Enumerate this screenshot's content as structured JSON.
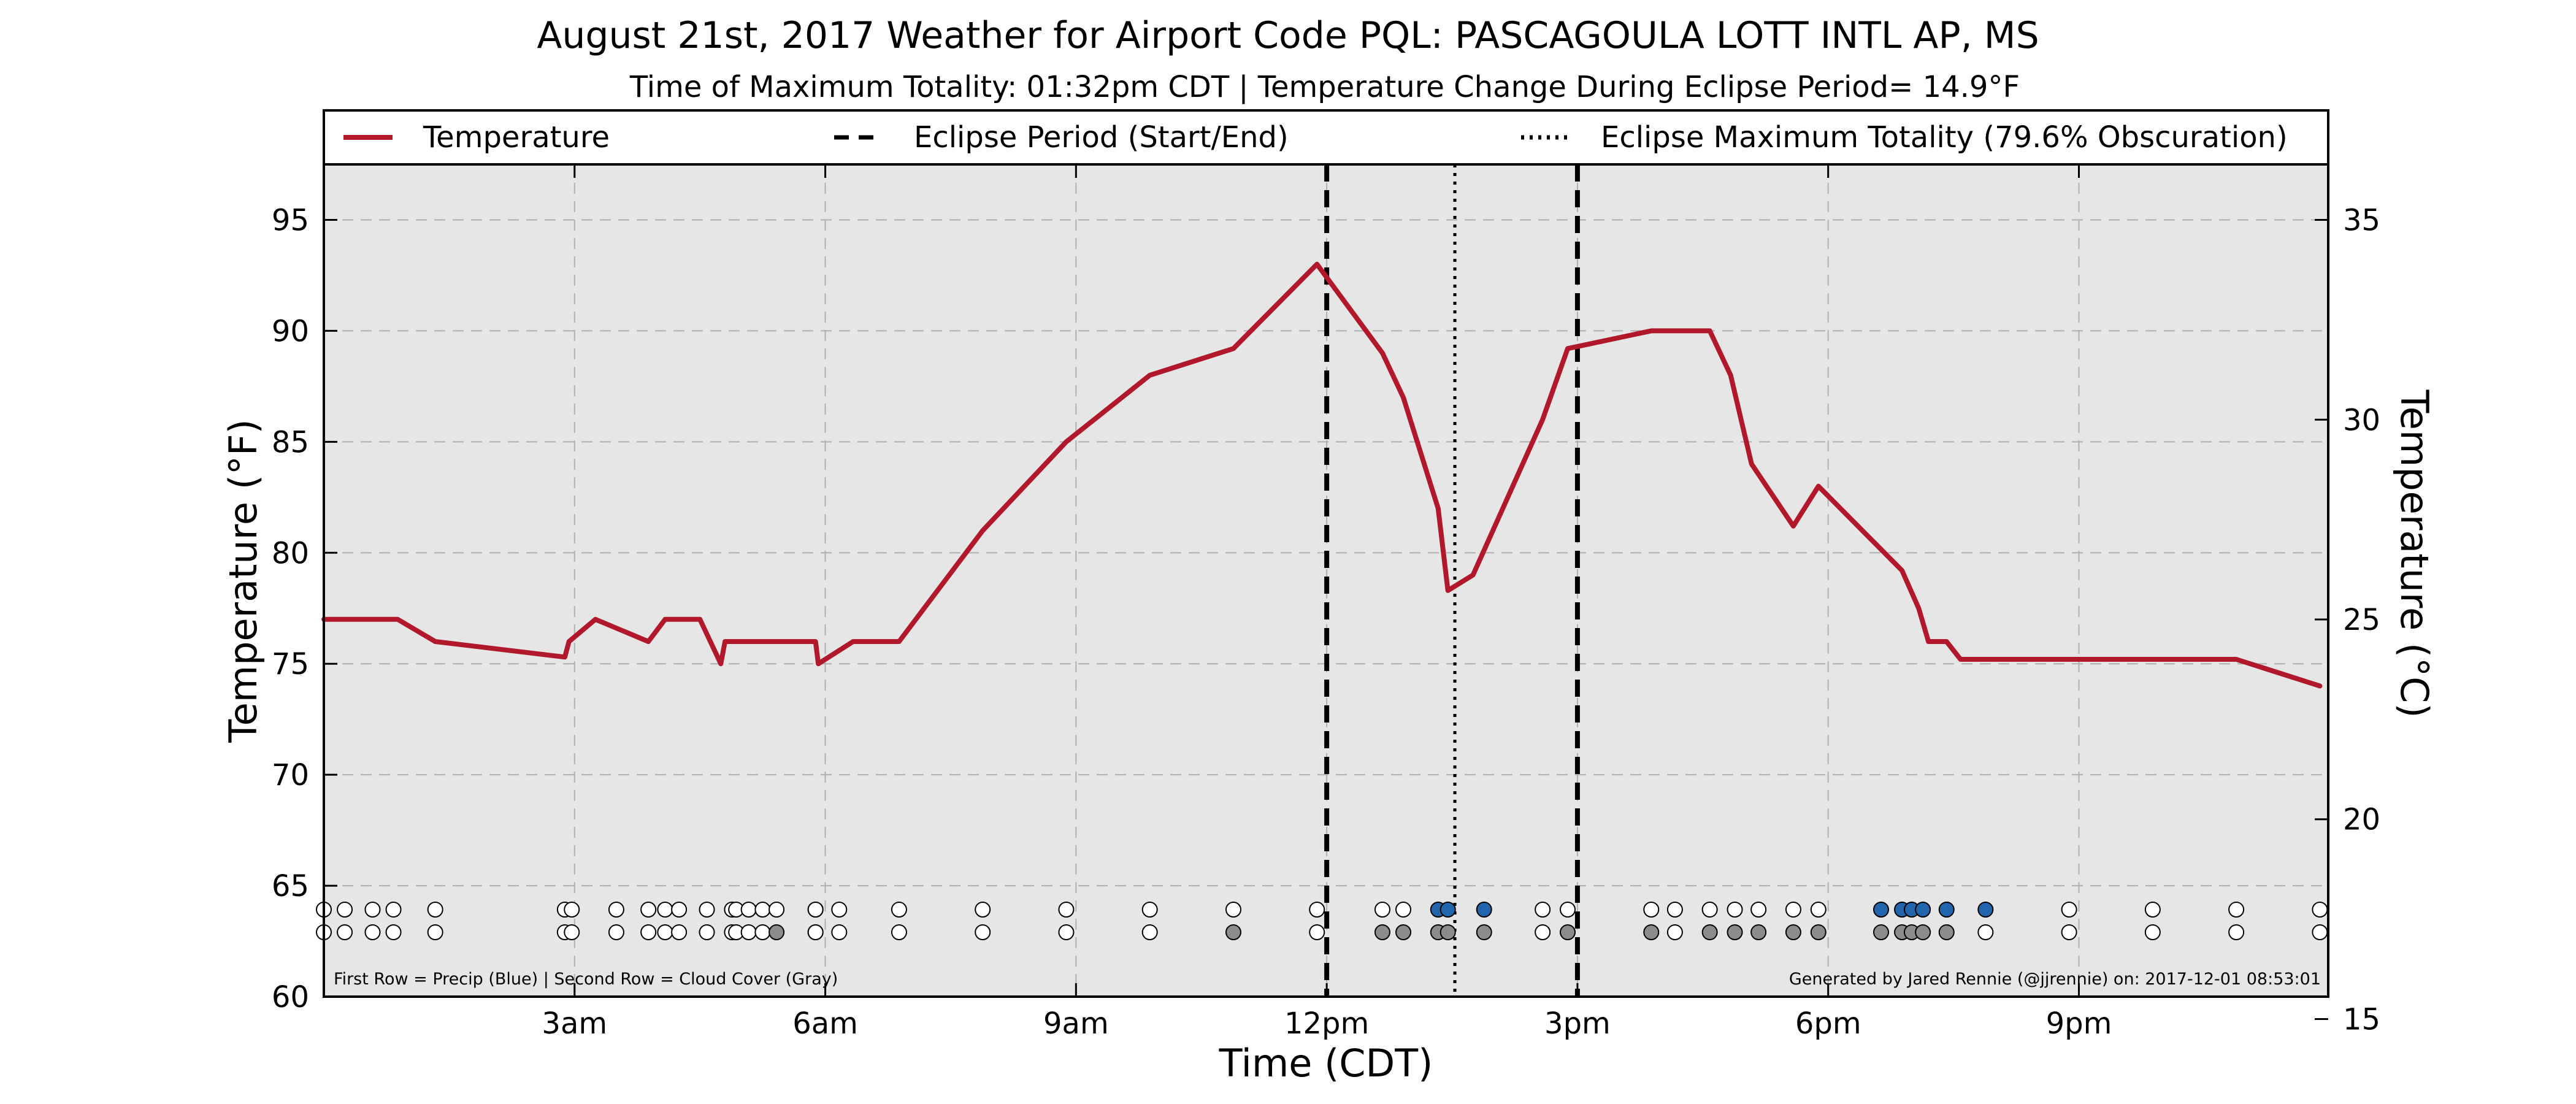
{
  "chart_data": {
    "type": "line",
    "title": "August 21st, 2017 Weather for Airport Code PQL: PASCAGOULA LOTT INTL AP, MS",
    "subtitle": "Time of Maximum Totality: 01:32pm CDT | Temperature Change During Eclipse Period= 14.9°F",
    "xlabel": "Time (CDT)",
    "ylabel": "Temperature (°F)",
    "ylabel_right": "Temperature (°C)",
    "xlim": [
      "00:00",
      "23:59"
    ],
    "ylim": [
      60,
      97.5
    ],
    "ylim_right": [
      15.56,
      36.39
    ],
    "x_ticks": [
      {
        "time": "03:00",
        "label": "3am"
      },
      {
        "time": "06:00",
        "label": "6am"
      },
      {
        "time": "09:00",
        "label": "9am"
      },
      {
        "time": "12:00",
        "label": "12pm"
      },
      {
        "time": "15:00",
        "label": "3pm"
      },
      {
        "time": "18:00",
        "label": "6pm"
      },
      {
        "time": "21:00",
        "label": "9pm"
      }
    ],
    "y_ticks": [
      60,
      65,
      70,
      75,
      80,
      85,
      90,
      95
    ],
    "y_ticks_right": [
      15,
      20,
      25,
      30,
      35
    ],
    "grid": true,
    "legend_position": "top",
    "legend": [
      {
        "label": "Temperature",
        "style": "solid",
        "color": "#b2182b"
      },
      {
        "label": "Eclipse Period (Start/End)",
        "style": "dashed",
        "color": "#000000"
      },
      {
        "label": "Eclipse Maximum Totality (79.6% Obscuration)",
        "style": "dotted",
        "color": "#000000"
      }
    ],
    "series": [
      {
        "name": "Temperature",
        "color": "#b2182b",
        "points": [
          [
            "00:00",
            77
          ],
          [
            "00:53",
            77
          ],
          [
            "01:20",
            76
          ],
          [
            "02:53",
            75.3
          ],
          [
            "02:56",
            76
          ],
          [
            "03:15",
            77
          ],
          [
            "03:53",
            76
          ],
          [
            "04:05",
            77
          ],
          [
            "04:30",
            77
          ],
          [
            "04:45",
            75
          ],
          [
            "04:48",
            76
          ],
          [
            "05:53",
            76
          ],
          [
            "05:53",
            76
          ],
          [
            "05:53",
            76
          ],
          [
            "05:55",
            75
          ],
          [
            "06:20",
            76
          ],
          [
            "06:53",
            76
          ],
          [
            "06:53",
            76
          ],
          [
            "07:53",
            81
          ],
          [
            "08:53",
            85
          ],
          [
            "09:53",
            88
          ],
          [
            "10:53",
            89.2
          ],
          [
            "11:53",
            93
          ],
          [
            "12:40",
            89
          ],
          [
            "12:55",
            87
          ],
          [
            "13:20",
            82
          ],
          [
            "13:27",
            78.3
          ],
          [
            "13:45",
            79
          ],
          [
            "14:35",
            86
          ],
          [
            "14:53",
            89.2
          ],
          [
            "15:53",
            90
          ],
          [
            "16:35",
            90
          ],
          [
            "16:50",
            88
          ],
          [
            "17:05",
            84
          ],
          [
            "17:35",
            81.2
          ],
          [
            "17:53",
            83
          ],
          [
            "18:53",
            79.2
          ],
          [
            "19:05",
            77.5
          ],
          [
            "19:12",
            76
          ],
          [
            "19:25",
            76
          ],
          [
            "19:35",
            75.2
          ],
          [
            "20:53",
            75.2
          ],
          [
            "21:53",
            75.2
          ],
          [
            "22:53",
            75.2
          ],
          [
            "23:53",
            74
          ]
        ]
      }
    ],
    "eclipse": {
      "start": "12:00",
      "end": "15:00",
      "max": "13:32"
    },
    "precip_row": {
      "label": "First Row = Precip (Blue)",
      "markers": [
        [
          "00:00",
          "none"
        ],
        [
          "00:15",
          "none"
        ],
        [
          "00:35",
          "none"
        ],
        [
          "00:50",
          "none"
        ],
        [
          "01:20",
          "none"
        ],
        [
          "02:53",
          "none"
        ],
        [
          "02:58",
          "none"
        ],
        [
          "03:30",
          "none"
        ],
        [
          "03:53",
          "none"
        ],
        [
          "04:05",
          "none"
        ],
        [
          "04:15",
          "none"
        ],
        [
          "04:35",
          "none"
        ],
        [
          "04:53",
          "none"
        ],
        [
          "04:56",
          "none"
        ],
        [
          "05:05",
          "none"
        ],
        [
          "05:15",
          "none"
        ],
        [
          "05:25",
          "none"
        ],
        [
          "05:53",
          "none"
        ],
        [
          "05:53",
          "none"
        ],
        [
          "06:10",
          "none"
        ],
        [
          "06:53",
          "none"
        ],
        [
          "07:53",
          "none"
        ],
        [
          "08:53",
          "none"
        ],
        [
          "09:53",
          "none"
        ],
        [
          "10:53",
          "none"
        ],
        [
          "11:53",
          "none"
        ],
        [
          "12:40",
          "none"
        ],
        [
          "12:55",
          "none"
        ],
        [
          "13:20",
          "blue"
        ],
        [
          "13:27",
          "blue"
        ],
        [
          "13:53",
          "blue"
        ],
        [
          "14:35",
          "none"
        ],
        [
          "14:53",
          "none"
        ],
        [
          "15:53",
          "none"
        ],
        [
          "16:10",
          "none"
        ],
        [
          "16:35",
          "none"
        ],
        [
          "16:53",
          "none"
        ],
        [
          "17:10",
          "none"
        ],
        [
          "17:35",
          "none"
        ],
        [
          "17:53",
          "none"
        ],
        [
          "18:38",
          "blue"
        ],
        [
          "18:53",
          "blue"
        ],
        [
          "19:00",
          "blue"
        ],
        [
          "19:08",
          "blue"
        ],
        [
          "19:25",
          "blue"
        ],
        [
          "19:53",
          "blue"
        ],
        [
          "20:53",
          "none"
        ],
        [
          "21:53",
          "none"
        ],
        [
          "22:53",
          "none"
        ],
        [
          "23:53",
          "none"
        ]
      ]
    },
    "cloud_row": {
      "label": "Second Row = Cloud Cover (Gray)",
      "markers": [
        [
          "00:00",
          "none"
        ],
        [
          "00:15",
          "none"
        ],
        [
          "00:35",
          "none"
        ],
        [
          "00:50",
          "none"
        ],
        [
          "01:20",
          "none"
        ],
        [
          "02:53",
          "none"
        ],
        [
          "02:58",
          "none"
        ],
        [
          "03:30",
          "none"
        ],
        [
          "03:53",
          "none"
        ],
        [
          "04:05",
          "none"
        ],
        [
          "04:15",
          "none"
        ],
        [
          "04:35",
          "none"
        ],
        [
          "04:53",
          "none"
        ],
        [
          "04:56",
          "none"
        ],
        [
          "05:05",
          "none"
        ],
        [
          "05:15",
          "none"
        ],
        [
          "05:25",
          "gray"
        ],
        [
          "05:53",
          "none"
        ],
        [
          "05:53",
          "none"
        ],
        [
          "06:10",
          "none"
        ],
        [
          "06:53",
          "none"
        ],
        [
          "07:53",
          "none"
        ],
        [
          "08:53",
          "none"
        ],
        [
          "09:53",
          "none"
        ],
        [
          "10:53",
          "gray"
        ],
        [
          "11:53",
          "none"
        ],
        [
          "12:40",
          "gray"
        ],
        [
          "12:55",
          "gray"
        ],
        [
          "13:20",
          "gray"
        ],
        [
          "13:27",
          "gray"
        ],
        [
          "13:53",
          "gray"
        ],
        [
          "14:35",
          "none"
        ],
        [
          "14:53",
          "gray"
        ],
        [
          "15:53",
          "gray"
        ],
        [
          "16:10",
          "none"
        ],
        [
          "16:35",
          "gray"
        ],
        [
          "16:53",
          "gray"
        ],
        [
          "17:10",
          "gray"
        ],
        [
          "17:35",
          "gray"
        ],
        [
          "17:53",
          "gray"
        ],
        [
          "18:38",
          "gray"
        ],
        [
          "18:53",
          "gray"
        ],
        [
          "19:00",
          "gray"
        ],
        [
          "19:08",
          "gray"
        ],
        [
          "19:25",
          "gray"
        ],
        [
          "19:53",
          "none"
        ],
        [
          "20:53",
          "none"
        ],
        [
          "21:53",
          "none"
        ],
        [
          "22:53",
          "none"
        ],
        [
          "23:53",
          "none"
        ]
      ]
    },
    "footnote_left": "First Row = Precip (Blue) | Second Row = Cloud Cover (Gray)",
    "footnote_right": "Generated by Jared Rennie (@jjrennie) on: 2017-12-01 08:53:01",
    "colors": {
      "plot_background": "#e6e6e6",
      "temperature": "#b2182b",
      "precip": "#2166ac",
      "cloud": "#8c8c8c",
      "grid": "#b0b0b0"
    }
  }
}
